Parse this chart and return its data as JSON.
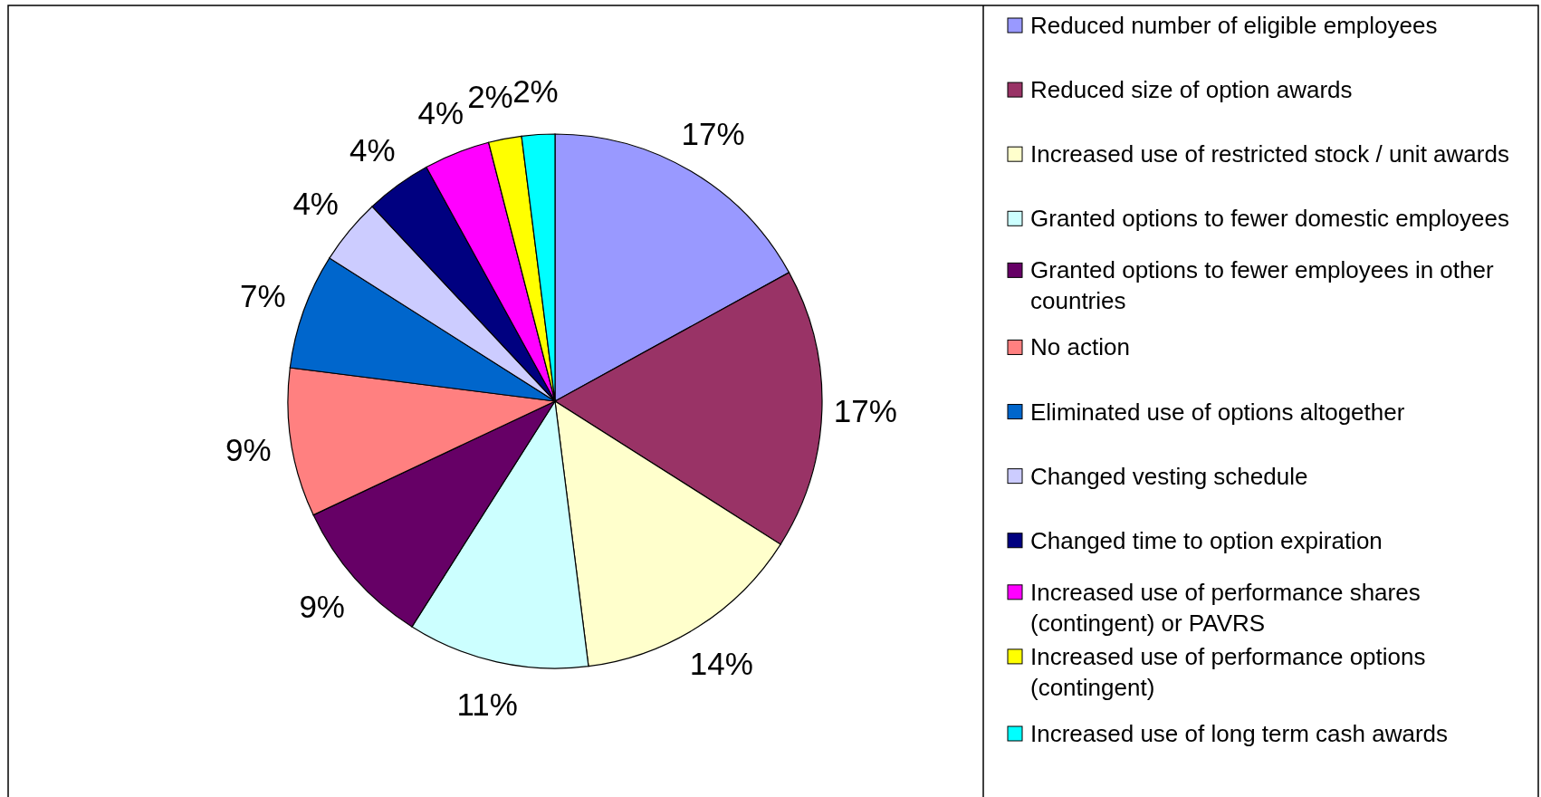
{
  "chart_data": {
    "type": "pie",
    "categories": [
      "Reduced number of eligible employees",
      "Reduced size of option awards",
      "Increased use of restricted stock / unit awards",
      "Granted options to fewer domestic employees",
      "Granted options to fewer employees in other countries",
      "No action",
      "Eliminated use of options altogether",
      "Changed vesting schedule",
      "Changed time to option expiration",
      "Increased use of performance shares (contingent) or PAVRS",
      "Increased use of performance options (contingent)",
      "Increased use of long term cash awards"
    ],
    "values": [
      17,
      17,
      14,
      11,
      9,
      9,
      7,
      4,
      4,
      4,
      2,
      2
    ],
    "colors": [
      "#9999ff",
      "#993366",
      "#ffffcc",
      "#ccffff",
      "#660066",
      "#ff8080",
      "#0066cc",
      "#ccccff",
      "#000080",
      "#ff00ff",
      "#ffff00",
      "#00ffff"
    ],
    "value_labels": [
      "17%",
      "17%",
      "14%",
      "11%",
      "9%",
      "9%",
      "7%",
      "4%",
      "4%",
      "4%",
      "2%",
      "2%"
    ],
    "legend": "right"
  }
}
